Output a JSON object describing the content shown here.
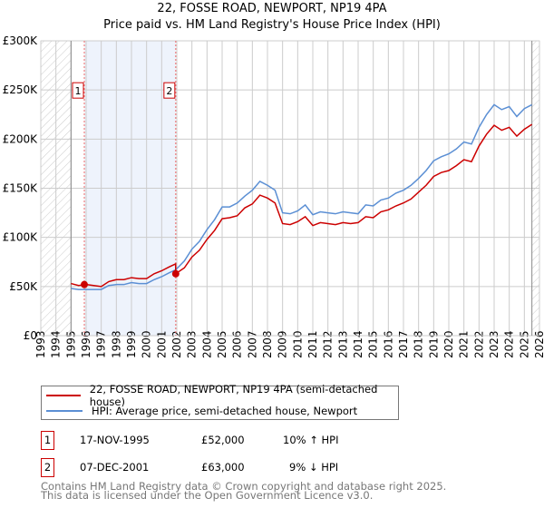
{
  "chart_data": {
    "type": "line",
    "title": "22, FOSSE ROAD, NEWPORT, NP19 4PA",
    "subtitle": "Price paid vs. HM Land Registry's House Price Index (HPI)",
    "xlim": [
      1993,
      2026
    ],
    "ylim": [
      0,
      300000
    ],
    "x_ticks": [
      "1993",
      "1994",
      "1995",
      "1996",
      "1997",
      "1998",
      "1999",
      "2000",
      "2001",
      "2002",
      "2003",
      "2004",
      "2005",
      "2006",
      "2007",
      "2008",
      "2009",
      "2010",
      "2011",
      "2012",
      "2013",
      "2014",
      "2015",
      "2016",
      "2017",
      "2018",
      "2019",
      "2020",
      "2021",
      "2022",
      "2023",
      "2024",
      "2025",
      "2026"
    ],
    "y_ticks": [
      {
        "v": 0,
        "label": "£0"
      },
      {
        "v": 50000,
        "label": "£50K"
      },
      {
        "v": 100000,
        "label": "£100K"
      },
      {
        "v": 150000,
        "label": "£150K"
      },
      {
        "v": 200000,
        "label": "£200K"
      },
      {
        "v": 250000,
        "label": "£250K"
      },
      {
        "v": 300000,
        "label": "£300K"
      }
    ],
    "grid": true,
    "data_start": 1995,
    "data_end": 2025.5,
    "series": [
      {
        "name": "22, FOSSE ROAD, NEWPORT, NP19 4PA (semi-detached house)",
        "color": "#cc0000",
        "x": [
          1995,
          1995.5,
          1996,
          1996.5,
          1997,
          1997.5,
          1998,
          1998.5,
          1999,
          1999.5,
          2000,
          2000.5,
          2001,
          2001.5,
          2001.92,
          2001.93,
          2002.5,
          2003,
          2003.5,
          2004,
          2004.5,
          2005,
          2005.5,
          2006,
          2006.5,
          2007,
          2007.5,
          2008,
          2008.5,
          2009,
          2009.5,
          2010,
          2010.5,
          2011,
          2011.5,
          2012,
          2012.5,
          2013,
          2013.5,
          2014,
          2014.5,
          2015,
          2015.5,
          2016,
          2016.5,
          2017,
          2017.5,
          2018,
          2018.5,
          2019,
          2019.5,
          2020,
          2020.5,
          2021,
          2021.5,
          2022,
          2022.5,
          2023,
          2023.5,
          2024,
          2024.5,
          2025,
          2025.5
        ],
        "y": [
          53000,
          51000,
          52000,
          51000,
          50000,
          55000,
          57000,
          57000,
          59000,
          58000,
          58000,
          63000,
          66000,
          70000,
          73000,
          63000,
          69000,
          80000,
          87000,
          98000,
          107000,
          119000,
          120000,
          122000,
          130000,
          134000,
          143000,
          140000,
          135000,
          114000,
          113000,
          116000,
          121000,
          112000,
          115000,
          114000,
          113000,
          115000,
          114000,
          115000,
          121000,
          120000,
          126000,
          128000,
          132000,
          135000,
          139000,
          146000,
          153000,
          162000,
          166000,
          168000,
          173000,
          179000,
          177000,
          193000,
          205000,
          214000,
          209000,
          212000,
          203000,
          210000,
          215000
        ]
      },
      {
        "name": "HPI: Average price, semi-detached house, Newport",
        "color": "#5b8fd4",
        "x": [
          1995,
          1995.5,
          1996,
          1996.5,
          1997,
          1997.5,
          1998,
          1998.5,
          1999,
          1999.5,
          2000,
          2000.5,
          2001,
          2001.5,
          2001.93,
          2002.5,
          2003,
          2003.5,
          2004,
          2004.5,
          2005,
          2005.5,
          2006,
          2006.5,
          2007,
          2007.5,
          2008,
          2008.5,
          2009,
          2009.5,
          2010,
          2010.5,
          2011,
          2011.5,
          2012,
          2012.5,
          2013,
          2013.5,
          2014,
          2014.5,
          2015,
          2015.5,
          2016,
          2016.5,
          2017,
          2017.5,
          2018,
          2018.5,
          2019,
          2019.5,
          2020,
          2020.5,
          2021,
          2021.5,
          2022,
          2022.5,
          2023,
          2023.5,
          2024,
          2024.5,
          2025,
          2025.5
        ],
        "y": [
          48000,
          47000,
          47000,
          47000,
          47000,
          51000,
          52000,
          52000,
          54000,
          53000,
          53000,
          57000,
          60000,
          64000,
          67000,
          76000,
          88000,
          96000,
          108000,
          118000,
          131000,
          131000,
          135000,
          142000,
          148000,
          157000,
          153000,
          148000,
          125000,
          124000,
          127000,
          133000,
          123000,
          126000,
          125000,
          124000,
          126000,
          125000,
          124000,
          133000,
          132000,
          138000,
          140000,
          145000,
          148000,
          153000,
          160000,
          168000,
          178000,
          182000,
          185000,
          190000,
          197000,
          195000,
          212000,
          225000,
          235000,
          230000,
          233000,
          223000,
          231000,
          235000
        ]
      }
    ],
    "sales": [
      {
        "id": "1",
        "x": 1995.88,
        "price": 52000
      },
      {
        "id": "2",
        "x": 2001.93,
        "price": 63000
      }
    ]
  },
  "legend": {
    "items": [
      "22, FOSSE ROAD, NEWPORT, NP19 4PA (semi-detached house)",
      "HPI: Average price, semi-detached house, Newport"
    ]
  },
  "transactions": [
    {
      "id": "1",
      "date": "17-NOV-1995",
      "price": "£52,000",
      "hpi": "10% ↑ HPI"
    },
    {
      "id": "2",
      "date": "07-DEC-2001",
      "price": "£63,000",
      "hpi": "9% ↓ HPI"
    }
  ],
  "footer": {
    "line1": "Contains HM Land Registry data © Crown copyright and database right 2025.",
    "line2": "This data is licensed under the Open Government Licence v3.0."
  }
}
